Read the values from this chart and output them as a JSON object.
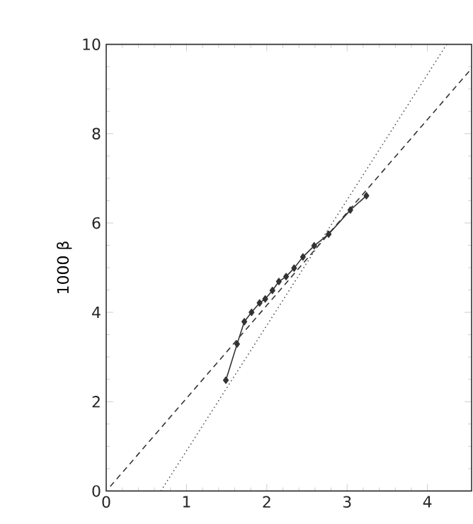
{
  "chart_data": {
    "type": "line",
    "ylabel": "1000 β",
    "xlim": [
      0,
      4.55
    ],
    "ylim": [
      0,
      10
    ],
    "xticks": [
      0,
      1,
      2,
      3,
      4
    ],
    "yticks": [
      0,
      2,
      4,
      6,
      8,
      10
    ],
    "grid": false,
    "series": [
      {
        "color": "#333333",
        "marker": "diamond",
        "line_style": "solid",
        "x": [
          1.49,
          1.63,
          1.72,
          1.81,
          1.91,
          1.98,
          2.07,
          2.15,
          2.24,
          2.34,
          2.45,
          2.59,
          2.77,
          3.04,
          3.24
        ],
        "values": [
          2.48,
          3.29,
          3.79,
          4.0,
          4.21,
          4.3,
          4.49,
          4.69,
          4.8,
          4.99,
          5.24,
          5.49,
          5.75,
          6.29,
          6.61
        ]
      },
      {
        "color": "#333333",
        "marker": "none",
        "line_style": "dashed",
        "x": [
          0.05,
          4.55
        ],
        "values": [
          0.1,
          9.46
        ]
      },
      {
        "color": "#555555",
        "marker": "none",
        "line_style": "dotted",
        "x": [
          0.68,
          4.24
        ],
        "values": [
          0,
          10
        ]
      }
    ]
  }
}
